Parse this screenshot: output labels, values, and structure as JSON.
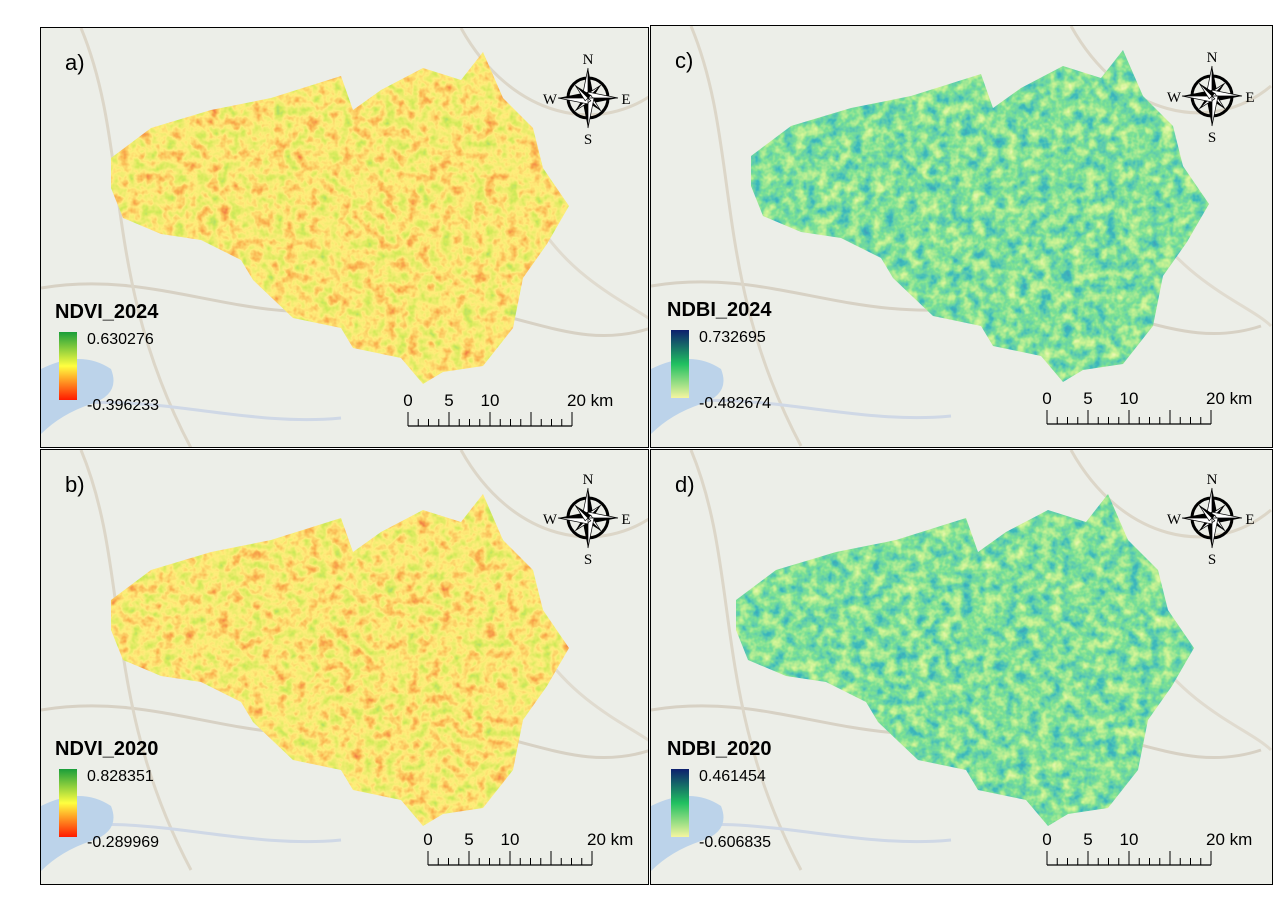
{
  "panels": [
    {
      "label": "a)",
      "legend": {
        "title": "NDVI_2024",
        "max": "0.630276",
        "min": "-0.396233"
      },
      "scale_bar": [
        "0",
        "5",
        "10",
        "20 km"
      ],
      "compass": {
        "n": "N",
        "s": "S",
        "e": "E",
        "w": "W"
      }
    },
    {
      "label": "c)",
      "legend": {
        "title": "NDBI_2024",
        "max": "0.732695",
        "min": "-0.482674"
      },
      "scale_bar": [
        "0",
        "5",
        "10",
        "20 km"
      ],
      "compass": {
        "n": "N",
        "s": "S",
        "e": "E",
        "w": "W"
      }
    },
    {
      "label": "b)",
      "legend": {
        "title": "NDVI_2020",
        "max": "0.828351",
        "min": "-0.289969"
      },
      "scale_bar": [
        "0",
        "5",
        "10",
        "20 km"
      ],
      "compass": {
        "n": "N",
        "s": "S",
        "e": "E",
        "w": "W"
      }
    },
    {
      "label": "d)",
      "legend": {
        "title": "NDBI_2020",
        "max": "0.461454",
        "min": "-0.606835"
      },
      "scale_bar": [
        "0",
        "5",
        "10",
        "20 km"
      ],
      "compass": {
        "n": "N",
        "s": "S",
        "e": "E",
        "w": "W"
      }
    }
  ]
}
